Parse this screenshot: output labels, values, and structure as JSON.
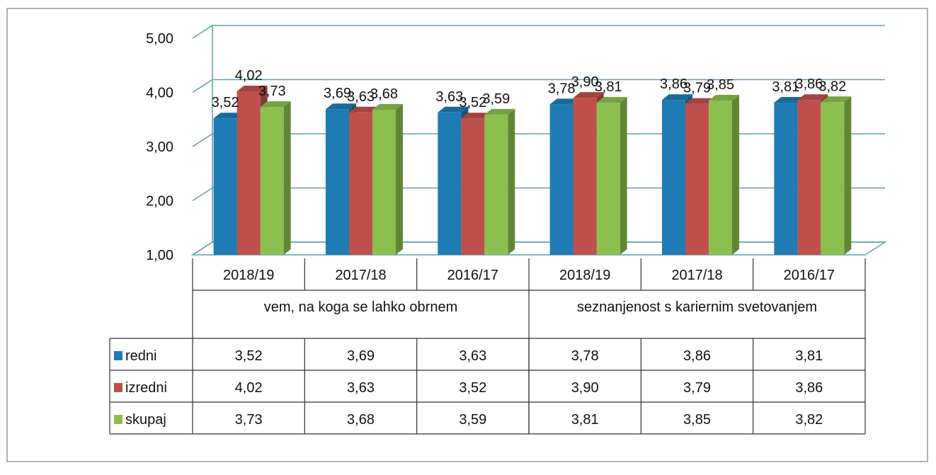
{
  "chart_data": {
    "type": "bar3d",
    "categories": [
      "2018/19",
      "2017/18",
      "2016/17",
      "2018/19",
      "2017/18",
      "2016/17"
    ],
    "groups": [
      "vem, na koga se lahko obrnem",
      "seznanjenost s kariernim svetovanjem"
    ],
    "series": [
      {
        "name": "redni",
        "color": "#1f7bb4",
        "values": [
          3.52,
          3.69,
          3.63,
          3.78,
          3.86,
          3.81
        ],
        "value_labels": [
          "3,52",
          "3,69",
          "3,63",
          "3,78",
          "3,86",
          "3,81"
        ]
      },
      {
        "name": "izredni",
        "color": "#c0504d",
        "values": [
          4.02,
          3.63,
          3.52,
          3.9,
          3.79,
          3.86
        ],
        "value_labels": [
          "4,02",
          "3,63",
          "3,52",
          "3,90",
          "3,79",
          "3,86"
        ]
      },
      {
        "name": "skupaj",
        "color": "#8cbf4f",
        "values": [
          3.73,
          3.68,
          3.59,
          3.81,
          3.85,
          3.82
        ],
        "value_labels": [
          "3,73",
          "3,68",
          "3,59",
          "3,81",
          "3,85",
          "3,82"
        ]
      }
    ],
    "ylim": [
      1,
      5
    ],
    "yticks": [
      {
        "value": 1,
        "label": "1,00"
      },
      {
        "value": 2,
        "label": "2,00"
      },
      {
        "value": 3,
        "label": "3,00"
      },
      {
        "value": 4,
        "label": "4,00"
      },
      {
        "value": 5,
        "label": "5,00"
      }
    ],
    "grid": true
  }
}
